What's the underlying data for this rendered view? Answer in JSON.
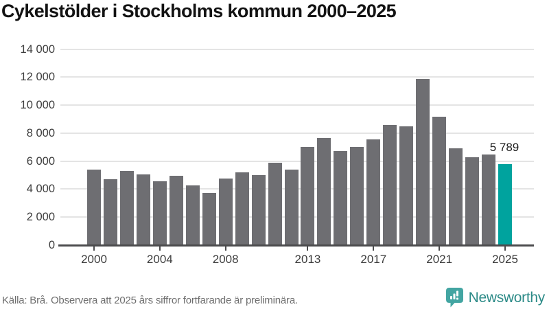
{
  "chart": {
    "title": "Cykelstölder i Stockholms kommun 2000–2025",
    "annotation_label": "5 789"
  },
  "chart_data": {
    "type": "bar",
    "title": "Cykelstölder i Stockholms kommun 2000–2025",
    "categories": [
      2000,
      2001,
      2002,
      2003,
      2004,
      2005,
      2006,
      2007,
      2008,
      2009,
      2010,
      2011,
      2012,
      2013,
      2014,
      2015,
      2016,
      2017,
      2018,
      2019,
      2020,
      2021,
      2022,
      2023,
      2024,
      2025
    ],
    "values": [
      5400,
      4700,
      5300,
      5050,
      4550,
      4950,
      4250,
      3750,
      4750,
      5200,
      5000,
      5900,
      5400,
      7000,
      7650,
      6700,
      7000,
      7550,
      8600,
      8500,
      11850,
      9150,
      6900,
      6300,
      6450,
      5789
    ],
    "highlight_index": 25,
    "bar_color": "#6e6e72",
    "highlight_color": "#00a39e",
    "ylim": [
      0,
      14000
    ],
    "ytick_step": 2000,
    "ytick_labels": [
      "0",
      "2 000",
      "4 000",
      "6 000",
      "8 000",
      "10 000",
      "12 000",
      "14 000"
    ],
    "xticks": [
      {
        "year": 2000,
        "label": "2000"
      },
      {
        "year": 2004,
        "label": "2004"
      },
      {
        "year": 2008,
        "label": "2008"
      },
      {
        "year": 2013,
        "label": "2013"
      },
      {
        "year": 2017,
        "label": "2017"
      },
      {
        "year": 2021,
        "label": "2021"
      },
      {
        "year": 2025,
        "label": "2025"
      }
    ],
    "grid": true,
    "legend": false,
    "annotation": {
      "text": "5 789",
      "year": 2025,
      "value": 5789
    }
  },
  "footer": {
    "source": "Källa: Brå. Observera att 2025 års siffror fortfarande är preliminära.",
    "brand": "Newsworthy",
    "brand_color": "#2d8b88",
    "bubble_color": "#43a5a2"
  }
}
